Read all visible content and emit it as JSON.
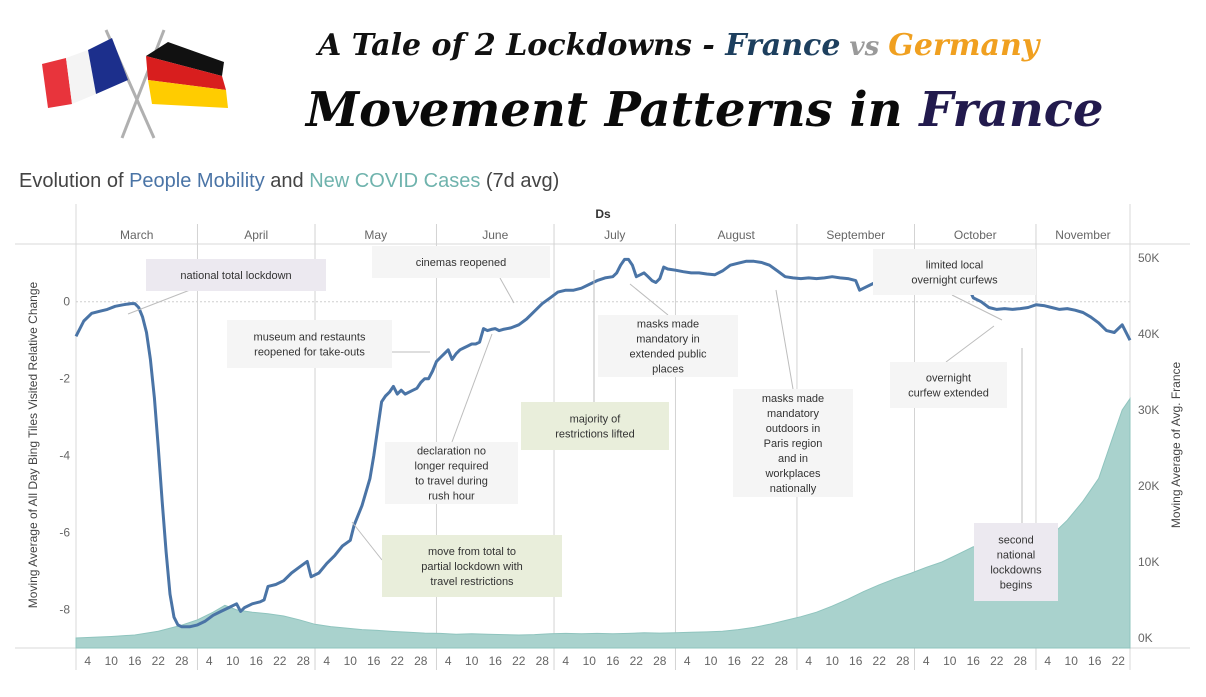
{
  "header": {
    "title_prefix": "A Tale of 2 Lockdowns - ",
    "title_country1": "France",
    "title_vs": " vs ",
    "title_country2": "Germany",
    "main_prefix": "Movement Patterns in ",
    "main_country": "France",
    "subtitle_prefix": "Evolution of ",
    "subtitle_series1": "People Mobility",
    "subtitle_and": " and ",
    "subtitle_series2": "New COVID Cases",
    "subtitle_suffix": " (7d avg)"
  },
  "colors": {
    "mobility": "#4a74a6",
    "cases": "#a9d2cd",
    "cases_stroke": "#8fc4be",
    "france_dark": "#1d3f5e",
    "germany": "#f0a020",
    "annotation_grey": "#f5f5f5",
    "annotation_green": "#e9eedb",
    "annotation_lilac": "#ece9f0"
  },
  "chart_data": {
    "type": "line",
    "xlabel": "Ds",
    "ylabel_left": "Moving Average of All Day Bing Tiles Visited Relative Change",
    "ylabel_right": "Moving Average of Avg. France",
    "months": [
      "March",
      "April",
      "May",
      "June",
      "July",
      "August",
      "September",
      "October",
      "November"
    ],
    "day_ticks": [
      "4",
      "10",
      "16",
      "22",
      "28"
    ],
    "november_day_ticks": [
      "4",
      "10",
      "16",
      "22"
    ],
    "y_left_ticks": [
      "0",
      "-2",
      "-4",
      "-6",
      "-8"
    ],
    "y_left_range": [
      -9.0,
      1.5
    ],
    "y_right_ticks": [
      "50K",
      "40K",
      "30K",
      "20K",
      "10K",
      "0K"
    ],
    "y_right_range": [
      0,
      58000
    ],
    "x_range_days": [
      1,
      270
    ],
    "series": [
      {
        "name": "People Mobility",
        "axis": "left",
        "points": [
          [
            1,
            -0.9
          ],
          [
            3,
            -0.5
          ],
          [
            5,
            -0.3
          ],
          [
            7,
            -0.25
          ],
          [
            9,
            -0.2
          ],
          [
            11,
            -0.12
          ],
          [
            13,
            -0.08
          ],
          [
            15,
            -0.05
          ],
          [
            16,
            -0.05
          ],
          [
            17,
            -0.15
          ],
          [
            18,
            -0.4
          ],
          [
            19,
            -0.8
          ],
          [
            20,
            -1.5
          ],
          [
            21,
            -2.5
          ],
          [
            22,
            -3.8
          ],
          [
            23,
            -5.2
          ],
          [
            24,
            -6.5
          ],
          [
            25,
            -7.6
          ],
          [
            26,
            -8.2
          ],
          [
            27,
            -8.4
          ],
          [
            28,
            -8.45
          ],
          [
            30,
            -8.45
          ],
          [
            32,
            -8.4
          ],
          [
            34,
            -8.3
          ],
          [
            36,
            -8.15
          ],
          [
            38,
            -8.05
          ],
          [
            40,
            -7.95
          ],
          [
            42,
            -7.85
          ],
          [
            43,
            -8.05
          ],
          [
            44,
            -7.95
          ],
          [
            46,
            -7.85
          ],
          [
            48,
            -7.8
          ],
          [
            49,
            -7.75
          ],
          [
            50,
            -7.4
          ],
          [
            52,
            -7.35
          ],
          [
            54,
            -7.25
          ],
          [
            56,
            -7.05
          ],
          [
            58,
            -6.9
          ],
          [
            60,
            -6.75
          ],
          [
            61,
            -7.15
          ],
          [
            63,
            -7.05
          ],
          [
            65,
            -6.8
          ],
          [
            67,
            -6.6
          ],
          [
            69,
            -6.35
          ],
          [
            71,
            -6.2
          ],
          [
            72,
            -5.8
          ],
          [
            74,
            -5.3
          ],
          [
            76,
            -4.6
          ],
          [
            77,
            -4.0
          ],
          [
            78,
            -3.3
          ],
          [
            79,
            -2.6
          ],
          [
            80,
            -2.45
          ],
          [
            81,
            -2.35
          ],
          [
            82,
            -2.2
          ],
          [
            83,
            -2.4
          ],
          [
            84,
            -2.3
          ],
          [
            85,
            -2.4
          ],
          [
            87,
            -2.3
          ],
          [
            88,
            -2.25
          ],
          [
            89,
            -2.1
          ],
          [
            90,
            -2.0
          ],
          [
            91,
            -2.0
          ],
          [
            92,
            -1.8
          ],
          [
            93,
            -1.55
          ],
          [
            94,
            -1.45
          ],
          [
            95,
            -1.35
          ],
          [
            96,
            -1.25
          ],
          [
            97,
            -1.5
          ],
          [
            98,
            -1.35
          ],
          [
            99,
            -1.25
          ],
          [
            100,
            -1.2
          ],
          [
            101,
            -1.15
          ],
          [
            102,
            -1.1
          ],
          [
            103,
            -1.1
          ],
          [
            104,
            -1.05
          ],
          [
            105,
            -0.7
          ],
          [
            106,
            -0.75
          ],
          [
            107,
            -0.72
          ],
          [
            108,
            -0.7
          ],
          [
            109,
            -0.75
          ],
          [
            110,
            -0.72
          ],
          [
            112,
            -0.68
          ],
          [
            114,
            -0.6
          ],
          [
            116,
            -0.45
          ],
          [
            118,
            -0.25
          ],
          [
            120,
            -0.05
          ],
          [
            122,
            0.1
          ],
          [
            124,
            0.25
          ],
          [
            126,
            0.3
          ],
          [
            128,
            0.3
          ],
          [
            130,
            0.35
          ],
          [
            132,
            0.45
          ],
          [
            134,
            0.55
          ],
          [
            136,
            0.62
          ],
          [
            138,
            0.65
          ],
          [
            139,
            0.75
          ],
          [
            140,
            0.95
          ],
          [
            141,
            1.1
          ],
          [
            142,
            1.1
          ],
          [
            143,
            0.95
          ],
          [
            144,
            0.65
          ],
          [
            145,
            0.7
          ],
          [
            146,
            0.75
          ],
          [
            147,
            0.65
          ],
          [
            148,
            0.55
          ],
          [
            149,
            0.5
          ],
          [
            150,
            0.6
          ],
          [
            151,
            0.9
          ],
          [
            152,
            0.85
          ],
          [
            154,
            0.82
          ],
          [
            156,
            0.78
          ],
          [
            158,
            0.75
          ],
          [
            160,
            0.75
          ],
          [
            162,
            0.72
          ],
          [
            164,
            0.7
          ],
          [
            166,
            0.8
          ],
          [
            168,
            0.95
          ],
          [
            170,
            1.0
          ],
          [
            172,
            1.05
          ],
          [
            174,
            1.05
          ],
          [
            176,
            1.02
          ],
          [
            178,
            0.95
          ],
          [
            180,
            0.8
          ],
          [
            182,
            0.65
          ],
          [
            184,
            0.62
          ],
          [
            186,
            0.6
          ],
          [
            188,
            0.62
          ],
          [
            190,
            0.6
          ],
          [
            192,
            0.62
          ],
          [
            194,
            0.65
          ],
          [
            196,
            0.62
          ],
          [
            198,
            0.6
          ],
          [
            200,
            0.55
          ],
          [
            201,
            0.3
          ],
          [
            202,
            0.35
          ],
          [
            204,
            0.45
          ],
          [
            206,
            0.55
          ],
          [
            208,
            0.75
          ],
          [
            210,
            0.85
          ],
          [
            212,
            0.9
          ],
          [
            214,
            0.88
          ],
          [
            216,
            0.82
          ],
          [
            218,
            0.85
          ],
          [
            220,
            0.8
          ],
          [
            222,
            0.75
          ],
          [
            224,
            0.55
          ],
          [
            226,
            0.4
          ],
          [
            228,
            0.3
          ],
          [
            229,
            0.32
          ],
          [
            230,
            0.1
          ],
          [
            232,
            0.0
          ],
          [
            234,
            -0.15
          ],
          [
            236,
            -0.2
          ],
          [
            238,
            -0.18
          ],
          [
            240,
            -0.2
          ],
          [
            242,
            -0.18
          ],
          [
            244,
            -0.15
          ],
          [
            246,
            -0.08
          ],
          [
            248,
            -0.1
          ],
          [
            250,
            -0.15
          ],
          [
            252,
            -0.2
          ],
          [
            254,
            -0.18
          ],
          [
            256,
            -0.22
          ],
          [
            258,
            -0.28
          ],
          [
            260,
            -0.4
          ],
          [
            262,
            -0.55
          ],
          [
            264,
            -0.75
          ],
          [
            266,
            -0.8
          ],
          [
            268,
            -0.6
          ],
          [
            270,
            -1.0
          ]
        ]
      },
      {
        "name": "New COVID Cases",
        "axis": "right",
        "points": [
          [
            1,
            0
          ],
          [
            10,
            200
          ],
          [
            16,
            400
          ],
          [
            22,
            900
          ],
          [
            28,
            1700
          ],
          [
            32,
            2400
          ],
          [
            36,
            3400
          ],
          [
            39,
            4300
          ],
          [
            42,
            3700
          ],
          [
            46,
            3400
          ],
          [
            50,
            3200
          ],
          [
            54,
            2900
          ],
          [
            58,
            2400
          ],
          [
            62,
            1800
          ],
          [
            66,
            1500
          ],
          [
            70,
            1300
          ],
          [
            74,
            1100
          ],
          [
            78,
            1000
          ],
          [
            82,
            850
          ],
          [
            86,
            750
          ],
          [
            90,
            650
          ],
          [
            94,
            600
          ],
          [
            98,
            500
          ],
          [
            102,
            550
          ],
          [
            106,
            500
          ],
          [
            110,
            450
          ],
          [
            114,
            400
          ],
          [
            118,
            450
          ],
          [
            122,
            550
          ],
          [
            126,
            600
          ],
          [
            130,
            550
          ],
          [
            134,
            600
          ],
          [
            138,
            550
          ],
          [
            142,
            600
          ],
          [
            146,
            700
          ],
          [
            150,
            650
          ],
          [
            154,
            700
          ],
          [
            158,
            750
          ],
          [
            162,
            800
          ],
          [
            166,
            900
          ],
          [
            170,
            1100
          ],
          [
            174,
            1400
          ],
          [
            178,
            1800
          ],
          [
            182,
            2300
          ],
          [
            186,
            2800
          ],
          [
            190,
            3400
          ],
          [
            194,
            4200
          ],
          [
            198,
            5100
          ],
          [
            202,
            6100
          ],
          [
            206,
            7000
          ],
          [
            210,
            7800
          ],
          [
            214,
            8500
          ],
          [
            218,
            9300
          ],
          [
            222,
            10000
          ],
          [
            226,
            11000
          ],
          [
            230,
            12000
          ],
          [
            234,
            12000
          ],
          [
            238,
            11500
          ],
          [
            242,
            11500
          ],
          [
            246,
            12200
          ],
          [
            250,
            13500
          ],
          [
            254,
            15500
          ],
          [
            258,
            18000
          ],
          [
            262,
            21000
          ],
          [
            264,
            24000
          ],
          [
            266,
            27000
          ],
          [
            268,
            30000
          ],
          [
            270,
            31500
          ]
        ]
      }
    ]
  },
  "annotations": {
    "national_total_lockdown": "national total lockdown",
    "museum_restaurants": "museum and restaunts reopened for take-outs",
    "cinemas_reopened": "cinemas reopened",
    "masks_extended_public": "masks made mandatory in extended public places",
    "majority_lifted": "majority of restrictions lifted",
    "declaration_rush_hour": "declaration no longer required to travel during rush hour",
    "move_total_partial": "move from total to partial lockdown with travel restrictions",
    "masks_outdoors": "masks made mandatory outdoors in Paris region and in workplaces nationally",
    "limited_curfews": "limited local overnight curfews",
    "curfew_extended": "overnight curfew extended",
    "second_lockdowns": "second national lockdowns begins"
  }
}
